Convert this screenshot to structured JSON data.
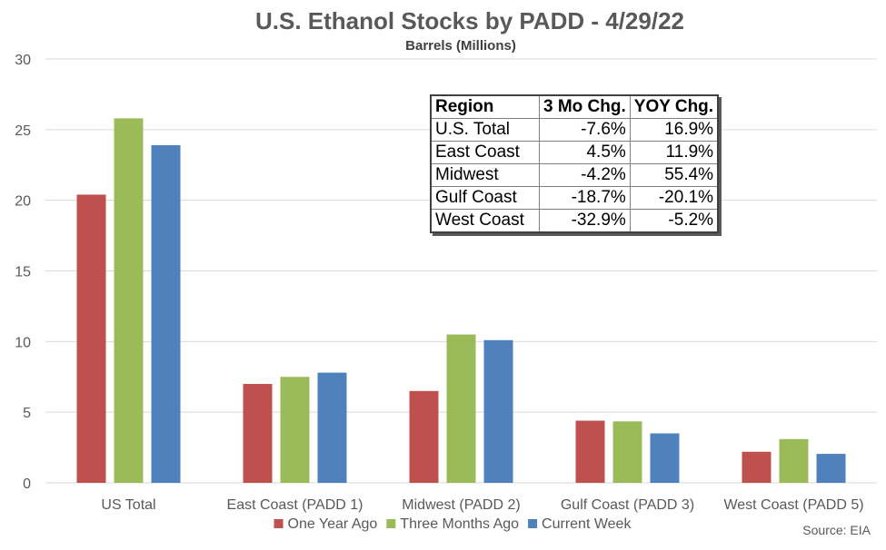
{
  "chart_data": {
    "type": "bar",
    "title": "U.S. Ethanol Stocks by PADD - 4/29/22",
    "subtitle": "Barrels (Millions)",
    "categories": [
      "US Total",
      "East Coast (PADD 1)",
      "Midwest (PADD 2)",
      "Gulf Coast (PADD 3)",
      "West Coast (PADD 5)"
    ],
    "series": [
      {
        "name": "One Year Ago",
        "color": "#c0504d",
        "values": [
          20.4,
          7.0,
          6.5,
          4.4,
          2.2
        ]
      },
      {
        "name": "Three Months Ago",
        "color": "#9bbb59",
        "values": [
          25.8,
          7.5,
          10.5,
          4.35,
          3.1
        ]
      },
      {
        "name": "Current Week",
        "color": "#4f81bd",
        "values": [
          23.9,
          7.8,
          10.1,
          3.5,
          2.05
        ]
      }
    ],
    "ylim": [
      0,
      30
    ],
    "yticks": [
      0,
      5,
      10,
      15,
      20,
      25,
      30
    ],
    "grid": true,
    "legend": "bottom",
    "source": "Source: EIA"
  },
  "inset_table": {
    "headers": [
      "Region",
      "3 Mo Chg.",
      "YOY Chg."
    ],
    "rows": [
      [
        "U.S. Total",
        "-7.6%",
        "16.9%"
      ],
      [
        "East Coast",
        "4.5%",
        "11.9%"
      ],
      [
        "Midwest",
        "-4.2%",
        "55.4%"
      ],
      [
        "Gulf Coast",
        "-18.7%",
        "-20.1%"
      ],
      [
        "West Coast",
        "-32.9%",
        "-5.2%"
      ]
    ]
  }
}
